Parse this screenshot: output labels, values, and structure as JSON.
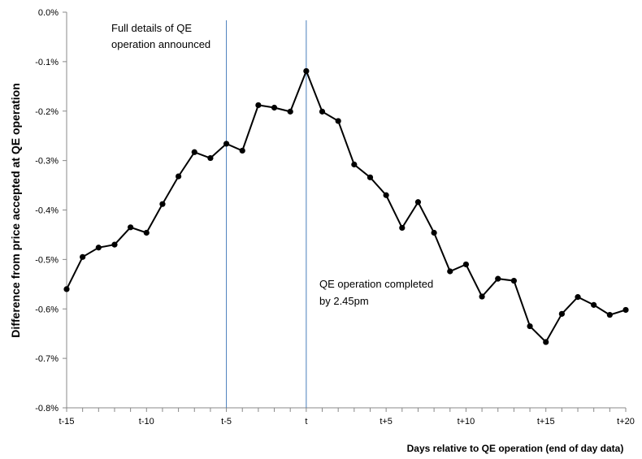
{
  "chart_data": {
    "type": "line",
    "xlabel": "Days relative to QE operation (end of day data)",
    "ylabel": "Difference from price accepted at QE operation",
    "x": [
      -15,
      -14,
      -13,
      -12,
      -11,
      -10,
      -9,
      -8,
      -7,
      -6,
      -5,
      -4,
      -3,
      -2,
      -1,
      0,
      1,
      2,
      3,
      4,
      5,
      6,
      7,
      8,
      9,
      10,
      11,
      12,
      13,
      14,
      15,
      16,
      17,
      18,
      19,
      20
    ],
    "series": [
      {
        "values": [
          -0.56,
          -0.495,
          -0.476,
          -0.47,
          -0.435,
          -0.446,
          -0.388,
          -0.332,
          -0.283,
          -0.295,
          -0.266,
          -0.28,
          -0.188,
          -0.193,
          -0.201,
          -0.119,
          -0.201,
          -0.22,
          -0.308,
          -0.334,
          -0.37,
          -0.436,
          -0.384,
          -0.446,
          -0.524,
          -0.51,
          -0.575,
          -0.539,
          -0.543,
          -0.635,
          -0.667,
          -0.61,
          -0.576,
          -0.592,
          -0.612,
          -0.602
        ],
        "color": "#000000"
      }
    ],
    "ylim": [
      -0.8,
      0.0
    ],
    "xlim": [
      -15,
      20
    ],
    "y_tick_values": [
      0.0,
      -0.1,
      -0.2,
      -0.3,
      -0.4,
      -0.5,
      -0.6,
      -0.7,
      -0.8
    ],
    "y_tick_labels": [
      "0.0%",
      "-0.1%",
      "-0.2%",
      "-0.3%",
      "-0.4%",
      "-0.5%",
      "-0.6%",
      "-0.7%",
      "-0.8%"
    ],
    "x_tick_values": [
      -15,
      -10,
      -5,
      0,
      5,
      10,
      15,
      20
    ],
    "x_tick_labels": [
      "t-15",
      "t-10",
      "t-5",
      "t",
      "t+5",
      "t+10",
      "t+15",
      "t+20"
    ],
    "vlines": [
      {
        "x": -5,
        "color": "#4a7ebb"
      },
      {
        "x": 0,
        "color": "#4a7ebb"
      }
    ],
    "annotations": [
      {
        "lines": [
          "Full details of QE",
          "operation announced"
        ]
      },
      {
        "lines": [
          "QE operation completed",
          "by 2.45pm"
        ]
      }
    ],
    "grid": false,
    "legend": "none"
  }
}
